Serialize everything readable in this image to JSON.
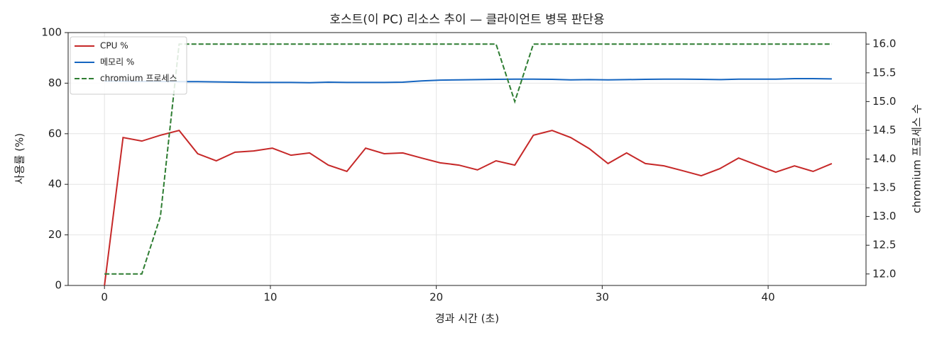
{
  "chart_data": {
    "type": "line",
    "title": "호스트(이 PC) 리소스 추이 — 클라이언트 병목 판단용",
    "xlabel": "경과 시간 (초)",
    "ylabel": "사용률 (%)",
    "y2label": "chromium 프로세스 수",
    "x": [
      0,
      1.12,
      2.25,
      3.37,
      4.5,
      5.62,
      6.74,
      7.87,
      8.99,
      10.12,
      11.24,
      12.36,
      13.49,
      14.61,
      15.74,
      16.86,
      17.98,
      19.11,
      20.23,
      21.36,
      22.48,
      23.6,
      24.73,
      25.85,
      26.98,
      28.1,
      29.22,
      30.35,
      31.47,
      32.6,
      33.72,
      34.84,
      35.97,
      37.09,
      38.22,
      39.34,
      40.46,
      41.59,
      42.71,
      43.84
    ],
    "series": [
      {
        "name": "CPU %",
        "color": "#c62828",
        "style": "solid",
        "values": [
          0,
          58.5,
          57.1,
          59.4,
          61.3,
          52.1,
          49.3,
          52.7,
          53.2,
          54.3,
          51.5,
          52.4,
          47.6,
          45.1,
          54.3,
          52.1,
          52.4,
          50.4,
          48.5,
          47.6,
          45.7,
          49.3,
          47.6,
          59.4,
          61.3,
          58.5,
          54.1,
          48.2,
          52.4,
          48.2,
          47.3,
          45.4,
          43.4,
          46.2,
          50.4,
          47.6,
          44.8,
          47.3,
          45.1,
          48.2
        ]
      },
      {
        "name": "메모리 %",
        "color": "#1565c0",
        "style": "solid",
        "values": [
          80.8,
          80.8,
          80.7,
          80.7,
          80.6,
          80.6,
          80.5,
          80.4,
          80.3,
          80.3,
          80.3,
          80.2,
          80.4,
          80.3,
          80.3,
          80.3,
          80.4,
          80.9,
          81.2,
          81.3,
          81.4,
          81.5,
          81.6,
          81.6,
          81.5,
          81.3,
          81.4,
          81.3,
          81.4,
          81.5,
          81.6,
          81.6,
          81.5,
          81.4,
          81.6,
          81.6,
          81.6,
          81.8,
          81.8,
          81.7
        ]
      },
      {
        "name": "chromium 프로세스",
        "color": "#2e7d32",
        "style": "dashed",
        "axis": "y2",
        "values": [
          12,
          12,
          12,
          13,
          16,
          16,
          16,
          16,
          16,
          16,
          16,
          16,
          16,
          16,
          16,
          16,
          16,
          16,
          16,
          16,
          16,
          16,
          15,
          16,
          16,
          16,
          16,
          16,
          16,
          16,
          16,
          16,
          16,
          16,
          16,
          16,
          16,
          16,
          16,
          16
        ]
      }
    ],
    "xlim": [
      -2.19,
      45.9
    ],
    "xticks": [
      0,
      10,
      20,
      30,
      40
    ],
    "ylim": [
      0,
      100
    ],
    "yticks": [
      0,
      20,
      40,
      60,
      80,
      100
    ],
    "y2lim": [
      11.8,
      16.2
    ],
    "y2ticks": [
      {
        "value": 12,
        "label": "12.0"
      },
      12.5,
      {
        "value": 13,
        "label": "13.0"
      },
      13.5,
      {
        "value": 14,
        "label": "14.0"
      },
      14.5,
      {
        "value": 15,
        "label": "15.0"
      },
      15.5,
      {
        "value": 16,
        "label": "16.0"
      }
    ],
    "grid": true,
    "legend": "upper left"
  }
}
